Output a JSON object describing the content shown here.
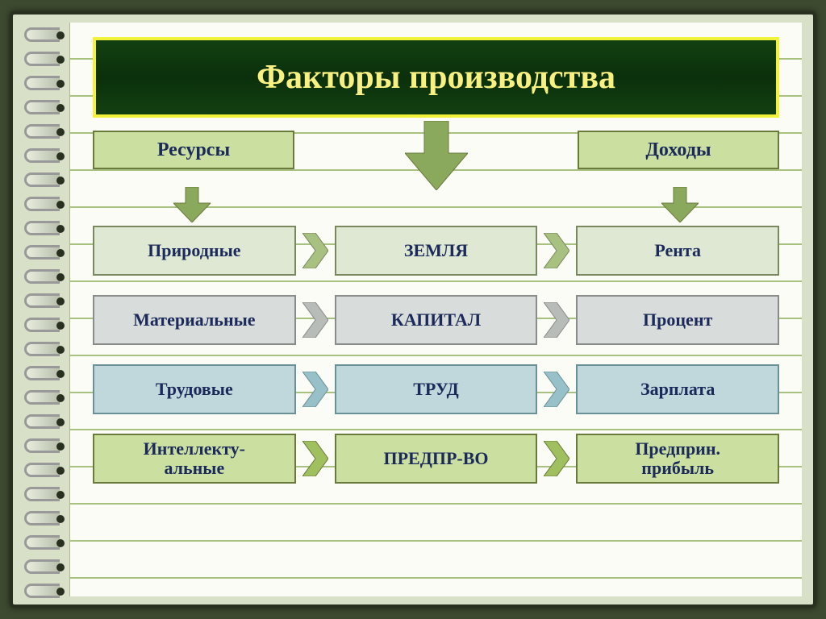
{
  "title": "Факторы производства",
  "title_style": {
    "border_color": "#f2f23a",
    "background_gradient": [
      "#124012",
      "#0b300b"
    ],
    "text_color": "#f8f080",
    "fontsize": 42
  },
  "page": {
    "outer_bg": "#3d4a2f",
    "wrap_bg": "#d8e0c8",
    "paper_bg": "#fbfcf6",
    "line_color": "#a8c080",
    "line_spacing": 46
  },
  "headers": {
    "left": {
      "label": "Ресурсы",
      "bg": "#cbe0a0",
      "border": "#6a7a3a",
      "text_color": "#1b2a5b"
    },
    "right": {
      "label": "Доходы",
      "bg": "#cbe0a0",
      "border": "#6a7a3a",
      "text_color": "#1b2a5b"
    }
  },
  "center_arrow": {
    "fill": "#8ba95c",
    "stroke": "#6a7a3a"
  },
  "small_arrows": {
    "fill": "#8ba95c",
    "stroke": "#6a7a3a"
  },
  "rows": [
    {
      "resources": "Природные",
      "factor": "ЗЕМЛЯ",
      "income": "Рента",
      "bg": "#dee8d2",
      "border": "#7a8860",
      "chevron_fill": "#a8c080"
    },
    {
      "resources": "Материальные",
      "factor": "КАПИТАЛ",
      "income": "Процент",
      "bg": "#d8dcda",
      "border": "#888c8a",
      "chevron_fill": "#b8bcb8"
    },
    {
      "resources": "Трудовые",
      "factor": "ТРУД",
      "income": "Зарплата",
      "bg": "#c0d8dc",
      "border": "#6a9098",
      "chevron_fill": "#98c0c8"
    },
    {
      "resources": "Интеллекту-\nальные",
      "factor": "ПРЕДПР-ВО",
      "income": "Предприн.\nприбыль",
      "bg": "#cbe0a0",
      "border": "#6a7a3a",
      "chevron_fill": "#a0c060"
    }
  ],
  "typography": {
    "cell_fontsize": 22,
    "header_fontsize": 24,
    "font_family": "Georgia, Times New Roman, serif",
    "text_color": "#1b2a5b"
  }
}
